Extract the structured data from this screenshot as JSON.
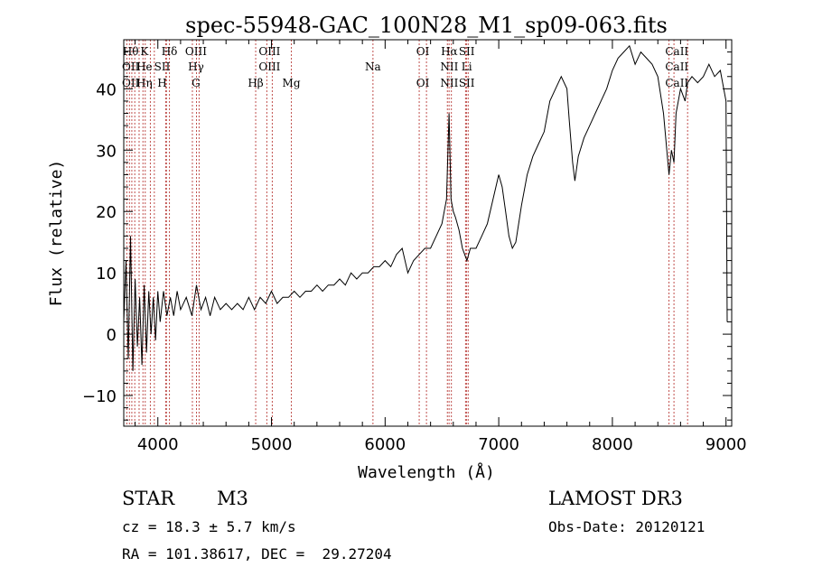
{
  "chart_data": {
    "type": "line",
    "title": "spec-55948-GAC_100N28_M1_sp09-063.fits",
    "xlabel": "Wavelength (Å)",
    "ylabel": "Flux (relative)",
    "xlim": [
      3700,
      9050
    ],
    "ylim": [
      -15,
      48
    ],
    "xticks": [
      4000,
      5000,
      6000,
      7000,
      8000,
      9000
    ],
    "yticks": [
      -10,
      0,
      10,
      20,
      30,
      40
    ],
    "grid": false,
    "spectrum": [
      [
        3700,
        2
      ],
      [
        3720,
        12
      ],
      [
        3740,
        -4
      ],
      [
        3760,
        16
      ],
      [
        3780,
        -6
      ],
      [
        3800,
        9
      ],
      [
        3820,
        -2
      ],
      [
        3840,
        6
      ],
      [
        3860,
        -5
      ],
      [
        3880,
        8
      ],
      [
        3900,
        -3
      ],
      [
        3920,
        7
      ],
      [
        3940,
        0
      ],
      [
        3960,
        6
      ],
      [
        3980,
        -1
      ],
      [
        4000,
        7
      ],
      [
        4020,
        2
      ],
      [
        4050,
        7
      ],
      [
        4080,
        3
      ],
      [
        4110,
        6
      ],
      [
        4140,
        3
      ],
      [
        4170,
        7
      ],
      [
        4200,
        4
      ],
      [
        4250,
        6
      ],
      [
        4300,
        3
      ],
      [
        4340,
        8
      ],
      [
        4380,
        4
      ],
      [
        4420,
        6
      ],
      [
        4460,
        3
      ],
      [
        4500,
        6
      ],
      [
        4550,
        4
      ],
      [
        4600,
        5
      ],
      [
        4650,
        4
      ],
      [
        4700,
        5
      ],
      [
        4750,
        4
      ],
      [
        4800,
        6
      ],
      [
        4850,
        4
      ],
      [
        4900,
        6
      ],
      [
        4950,
        5
      ],
      [
        5000,
        7
      ],
      [
        5050,
        5
      ],
      [
        5100,
        6
      ],
      [
        5150,
        6
      ],
      [
        5200,
        7
      ],
      [
        5250,
        6
      ],
      [
        5300,
        7
      ],
      [
        5350,
        7
      ],
      [
        5400,
        8
      ],
      [
        5450,
        7
      ],
      [
        5500,
        8
      ],
      [
        5550,
        8
      ],
      [
        5600,
        9
      ],
      [
        5650,
        8
      ],
      [
        5700,
        10
      ],
      [
        5750,
        9
      ],
      [
        5800,
        10
      ],
      [
        5850,
        10
      ],
      [
        5900,
        11
      ],
      [
        5950,
        11
      ],
      [
        6000,
        12
      ],
      [
        6050,
        11
      ],
      [
        6100,
        13
      ],
      [
        6150,
        14
      ],
      [
        6200,
        10
      ],
      [
        6250,
        12
      ],
      [
        6300,
        13
      ],
      [
        6350,
        14
      ],
      [
        6400,
        14
      ],
      [
        6450,
        16
      ],
      [
        6500,
        18
      ],
      [
        6540,
        22
      ],
      [
        6563,
        36
      ],
      [
        6580,
        22
      ],
      [
        6600,
        20
      ],
      [
        6620,
        19
      ],
      [
        6650,
        17
      ],
      [
        6680,
        14
      ],
      [
        6700,
        13
      ],
      [
        6720,
        12
      ],
      [
        6750,
        14
      ],
      [
        6800,
        14
      ],
      [
        6850,
        16
      ],
      [
        6900,
        18
      ],
      [
        6950,
        22
      ],
      [
        7000,
        26
      ],
      [
        7030,
        24
      ],
      [
        7060,
        20
      ],
      [
        7090,
        16
      ],
      [
        7120,
        14
      ],
      [
        7150,
        15
      ],
      [
        7200,
        21
      ],
      [
        7250,
        26
      ],
      [
        7300,
        29
      ],
      [
        7350,
        31
      ],
      [
        7400,
        33
      ],
      [
        7450,
        38
      ],
      [
        7500,
        40
      ],
      [
        7550,
        42
      ],
      [
        7600,
        40
      ],
      [
        7620,
        35
      ],
      [
        7650,
        28
      ],
      [
        7670,
        25
      ],
      [
        7700,
        29
      ],
      [
        7750,
        32
      ],
      [
        7800,
        34
      ],
      [
        7850,
        36
      ],
      [
        7900,
        38
      ],
      [
        7950,
        40
      ],
      [
        8000,
        43
      ],
      [
        8050,
        45
      ],
      [
        8100,
        46
      ],
      [
        8150,
        47
      ],
      [
        8200,
        44
      ],
      [
        8250,
        46
      ],
      [
        8300,
        45
      ],
      [
        8350,
        44
      ],
      [
        8400,
        42
      ],
      [
        8450,
        36
      ],
      [
        8498,
        26
      ],
      [
        8520,
        30
      ],
      [
        8542,
        28
      ],
      [
        8560,
        36
      ],
      [
        8600,
        40
      ],
      [
        8640,
        38
      ],
      [
        8662,
        41
      ],
      [
        8700,
        42
      ],
      [
        8750,
        41
      ],
      [
        8800,
        42
      ],
      [
        8850,
        44
      ],
      [
        8900,
        42
      ],
      [
        8950,
        43
      ],
      [
        9000,
        38
      ],
      [
        9010,
        2
      ]
    ],
    "lines": [
      {
        "row1": "Hθ",
        "row2": "OII",
        "row3": "OII",
        "wavelengths": [
          3727,
          3750,
          3771,
          3797
        ]
      },
      {
        "row1": "K",
        "row2": "He",
        "row3": "Hη",
        "wavelengths": [
          3835,
          3869,
          3889,
          3934
        ]
      },
      {
        "row1": "",
        "row2": "SII",
        "row3": "H",
        "wavelengths": [
          3969,
          4069,
          4076
        ]
      },
      {
        "row1": "Hδ",
        "row2": "",
        "row3": "",
        "wavelengths": [
          4102
        ]
      },
      {
        "row1": "OIII",
        "row2": "Hγ",
        "row3": "G",
        "wavelengths": [
          4304,
          4340,
          4363
        ]
      },
      {
        "row1": "",
        "row2": "",
        "row3": "Hβ",
        "wavelengths": [
          4861
        ]
      },
      {
        "row1": "OIII",
        "row2": "OIII",
        "row3": "",
        "wavelengths": [
          4959,
          5007
        ]
      },
      {
        "row1": "",
        "row2": "",
        "row3": "Mg",
        "wavelengths": [
          5175
        ]
      },
      {
        "row1": "",
        "row2": "Na",
        "row3": "",
        "wavelengths": [
          5893
        ]
      },
      {
        "row1": "OI",
        "row2": "",
        "row3": "OI",
        "wavelengths": [
          6300,
          6364
        ]
      },
      {
        "row1": "Hα",
        "row2": "NII",
        "row3": "NII",
        "wavelengths": [
          6548,
          6563,
          6583
        ]
      },
      {
        "row1": "SII",
        "row2": "Li",
        "row3": "SII",
        "wavelengths": [
          6708,
          6716,
          6731
        ]
      },
      {
        "row1": "CaII",
        "row2": "CaII",
        "row3": "CaII",
        "wavelengths": [
          8498,
          8542,
          8662
        ]
      }
    ]
  },
  "info": {
    "object_class": "STAR",
    "subclass": "M3",
    "survey": "LAMOST DR3",
    "cz": "cz = 18.3 ± 5.7 km/s",
    "obs_date": "Obs-Date: 20120121",
    "coords": "RA = 101.38617, DEC =  29.27204"
  }
}
